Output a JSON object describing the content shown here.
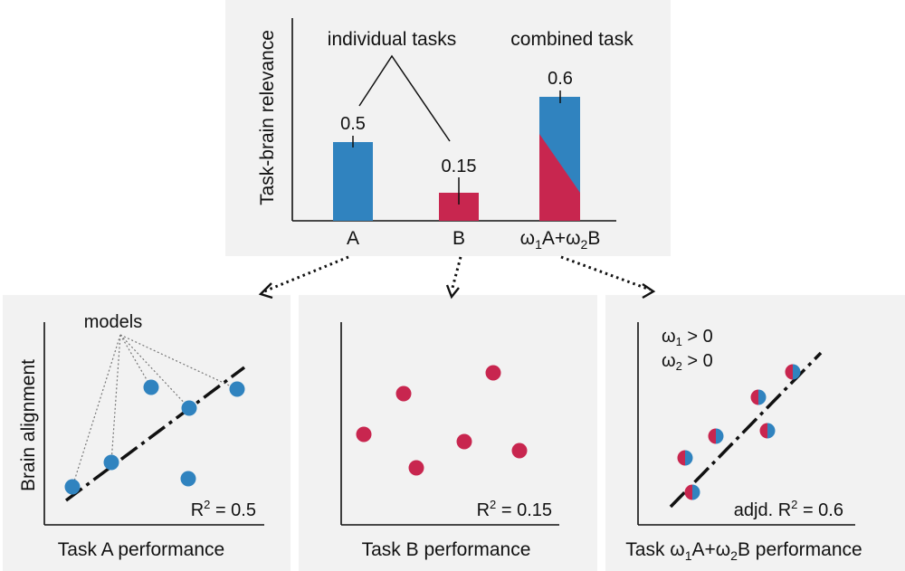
{
  "top_chart": {
    "ylabel": "Task-brain relevance",
    "group_labels": {
      "individual": "individual tasks",
      "combined": "combined task"
    },
    "bars": [
      {
        "category": "A",
        "value": 0.5,
        "label": "0.5"
      },
      {
        "category": "B",
        "value": 0.15,
        "label": "0.15"
      },
      {
        "category_parts": [
          "ω",
          "1",
          "A+ω",
          "2",
          "B"
        ],
        "value": 0.6,
        "label": "0.6"
      }
    ],
    "colors": {
      "task_a": "#3083bf",
      "task_b": "#c8264f"
    }
  },
  "panel_a": {
    "models_label": "models",
    "ylabel": "Brain alignment",
    "xlabel": "Task A performance",
    "r2_prefix": "R",
    "r2_sup": "2",
    "r2_suffix": " = 0.5"
  },
  "panel_b": {
    "xlabel": "Task B performance",
    "r2_prefix": "R",
    "r2_sup": "2",
    "r2_suffix": " = 0.15"
  },
  "panel_c": {
    "cond1": [
      "ω",
      "1",
      " > 0"
    ],
    "cond2": [
      "ω",
      "2",
      " > 0"
    ],
    "xlabel_parts": [
      "Task ω",
      "1",
      "A+ω",
      "2",
      "B performance"
    ],
    "r2_prefix": "adjd. R",
    "r2_sup": "2",
    "r2_suffix": " = 0.6"
  }
}
